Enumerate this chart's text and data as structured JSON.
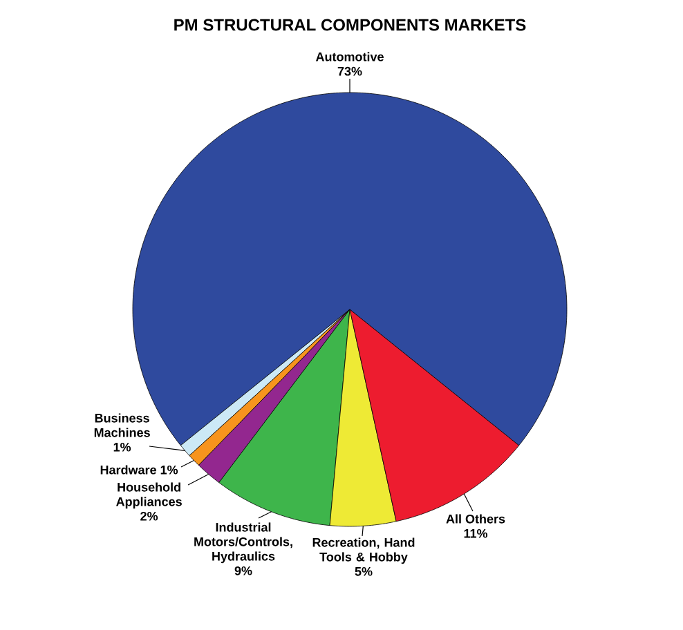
{
  "chart_data": {
    "type": "pie",
    "title": "PM STRUCTURAL COMPONENTS MARKETS",
    "categories": [
      "Automotive",
      "Business Machines",
      "Hardware",
      "Household Appliances",
      "Industrial Motors/Controls, Hydraulics",
      "Recreation, Hand Tools & Hobby",
      "All Others"
    ],
    "values": [
      73,
      1,
      1,
      2,
      9,
      5,
      11
    ],
    "value_labels": [
      "73%",
      "1%",
      "1%",
      "2%",
      "9%",
      "5%",
      "11%"
    ],
    "colors": [
      "#2f4a9e",
      "#cce9f6",
      "#f7941d",
      "#93278f",
      "#3eb54b",
      "#eeea35",
      "#ed1c2f"
    ]
  }
}
